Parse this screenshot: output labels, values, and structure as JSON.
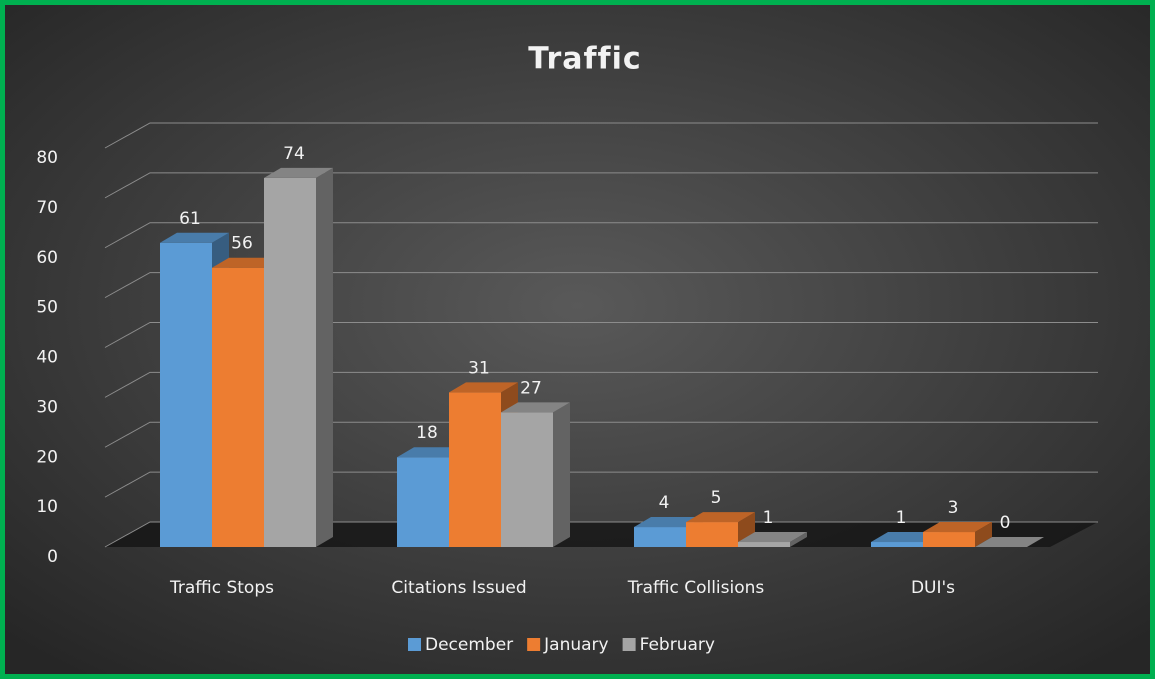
{
  "chart_data": {
    "type": "bar3d",
    "title": "Traffic",
    "categories": [
      "Traffic Stops",
      "Citations Issued",
      "Traffic Collisions",
      "DUI's"
    ],
    "series": [
      {
        "name": "December",
        "color": "#5b9bd5",
        "values": [
          61,
          18,
          4,
          1
        ]
      },
      {
        "name": "January",
        "color": "#ed7d31",
        "values": [
          56,
          31,
          5,
          3
        ]
      },
      {
        "name": "February",
        "color": "#a5a5a5",
        "values": [
          74,
          27,
          1,
          0
        ]
      }
    ],
    "ylim": [
      0,
      80
    ],
    "yticks": [
      0,
      10,
      20,
      30,
      40,
      50,
      60,
      70,
      80
    ],
    "grid": true,
    "legend": "bottom",
    "data_labels": true
  }
}
